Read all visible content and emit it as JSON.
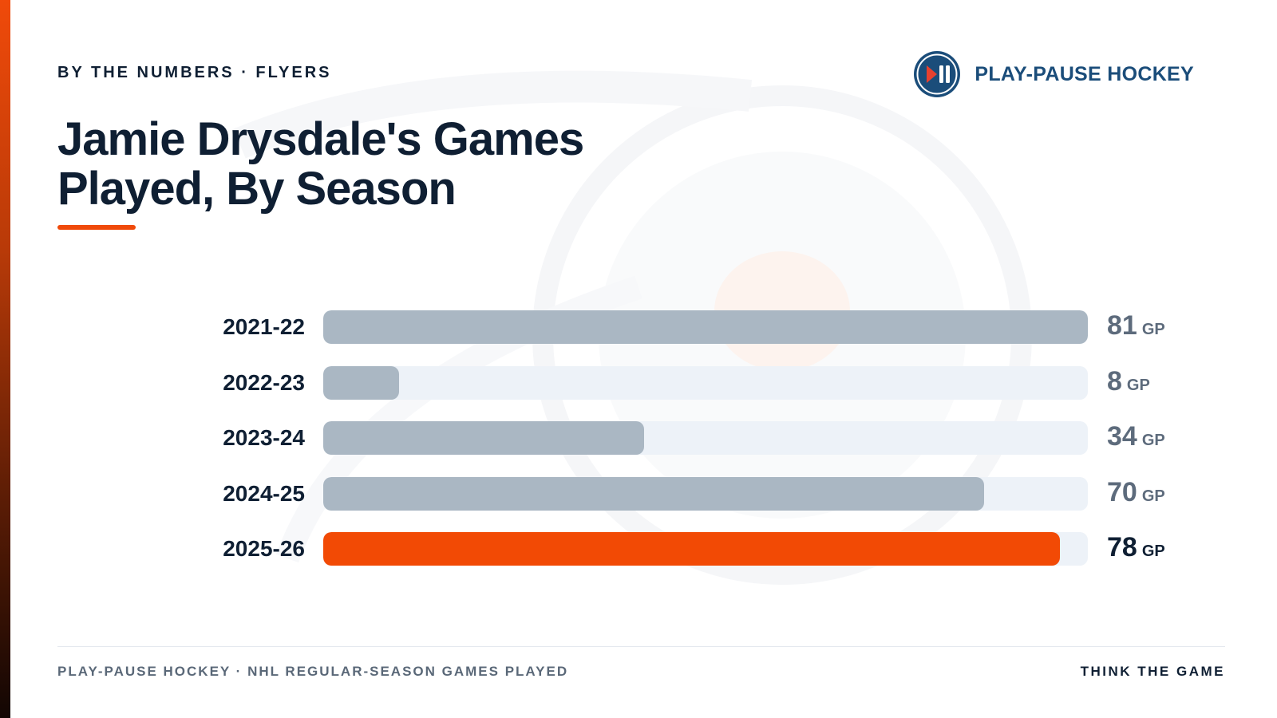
{
  "header": {
    "kicker": "BY THE NUMBERS · FLYERS",
    "brand_name": "PLAY-PAUSE HOCKEY",
    "brand_logo_icon": "play-pause-icon"
  },
  "title": {
    "line1": "Jamie Drysdale's Games",
    "line2": "Played, By Season"
  },
  "colors": {
    "accent": "#f04a0a",
    "bar_default": "#aab7c3",
    "bar_highlight": "#f24a05",
    "track": "#edf2f8",
    "value_default": "#5d6b7c",
    "value_highlight": "#0f1f33",
    "brand": "#1b4d7a"
  },
  "chart_data": {
    "type": "bar",
    "orientation": "horizontal",
    "categories": [
      "2021-22",
      "2022-23",
      "2023-24",
      "2024-25",
      "2025-26"
    ],
    "values": [
      81,
      8,
      34,
      70,
      78
    ],
    "unit": "GP",
    "xlim": [
      0,
      81
    ],
    "highlight_category": "2025-26",
    "grid": false,
    "legend": "none"
  },
  "footer": {
    "left": "PLAY-PAUSE HOCKEY · NHL REGULAR-SEASON GAMES PLAYED",
    "right": "THINK THE GAME"
  }
}
